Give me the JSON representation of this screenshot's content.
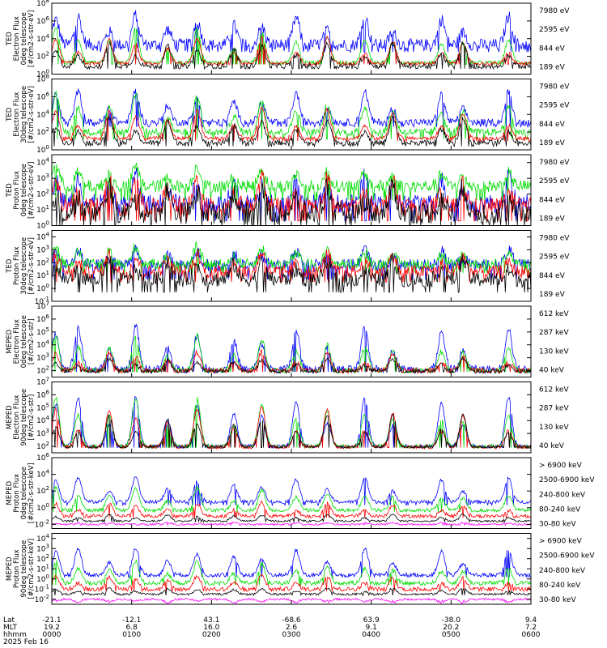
{
  "colors": {
    "blue": "#0000ff",
    "red": "#ff0000",
    "green": "#00dd00",
    "black": "#000000",
    "magenta": "#ff00ff"
  },
  "chart_data": [
    {
      "type": "line",
      "ylabel": [
        "TED",
        "Electron Flux",
        "0deg telescope",
        "[#/cm2-s-str-eV]"
      ],
      "ytick_exp": [
        "8",
        "6",
        "4",
        "2",
        "0"
      ],
      "yexp_top": 8,
      "yexp_bot": 0,
      "legend": [
        {
          "label": "7980 eV",
          "color": "#000000"
        },
        {
          "label": "2595 eV",
          "color": "#ff0000"
        },
        {
          "label": "844 eV",
          "color": "#00dd00"
        },
        {
          "label": "189 eV",
          "color": "#0000ff"
        }
      ],
      "series": [
        {
          "color": "#0000ff",
          "base": 3.3,
          "peak": 3.5,
          "floor": 2.5,
          "noise": 0.7
        },
        {
          "color": "#00dd00",
          "base": 1.3,
          "peak": 4.0,
          "floor": 1.1,
          "noise": 0.2
        },
        {
          "color": "#ff0000",
          "base": 1.2,
          "peak": 3.0,
          "floor": 1.1,
          "noise": 0.2
        },
        {
          "color": "#000000",
          "base": 0.9,
          "peak": 2.6,
          "floor": 0.6,
          "noise": 0.3
        }
      ]
    },
    {
      "type": "line",
      "ylabel": [
        "TED",
        "Electron Flux",
        "30deg telescope",
        "[#/cm2-s-str-eV]"
      ],
      "ytick_exp": [
        "8",
        "6",
        "4",
        "2",
        "0"
      ],
      "yexp_top": 8,
      "yexp_bot": 0,
      "legend": [
        {
          "label": "7980 eV",
          "color": "#000000"
        },
        {
          "label": "2595 eV",
          "color": "#ff0000"
        },
        {
          "label": "844 eV",
          "color": "#00dd00"
        },
        {
          "label": "189 eV",
          "color": "#0000ff"
        }
      ],
      "series": [
        {
          "color": "#0000ff",
          "base": 3.1,
          "peak": 3.8,
          "floor": 2.6,
          "noise": 0.4
        },
        {
          "color": "#00dd00",
          "base": 2.0,
          "peak": 4.4,
          "floor": 1.2,
          "noise": 0.4
        },
        {
          "color": "#ff0000",
          "base": 1.3,
          "peak": 3.4,
          "floor": 1.0,
          "noise": 0.2
        },
        {
          "color": "#000000",
          "base": 0.8,
          "peak": 2.8,
          "floor": 0.4,
          "noise": 0.3
        }
      ]
    },
    {
      "type": "line",
      "ylabel": [
        "TED",
        "Proton Flux",
        "0deg telescope",
        "[#/cm2-s-str-eV]"
      ],
      "ytick_exp": [
        "4",
        "3",
        "2",
        "1",
        "0"
      ],
      "yexp_top": 4.5,
      "yexp_bot": 0,
      "legend": [
        {
          "label": "7980 eV",
          "color": "#000000"
        },
        {
          "label": "2595 eV",
          "color": "#ff0000"
        },
        {
          "label": "844 eV",
          "color": "#00dd00"
        },
        {
          "label": "189 eV",
          "color": "#0000ff"
        }
      ],
      "series": [
        {
          "color": "#0000ff",
          "base": 1.4,
          "peak": 1.8,
          "floor": 0.3,
          "noise": 0.6
        },
        {
          "color": "#00dd00",
          "base": 2.5,
          "peak": 1.3,
          "floor": 1.6,
          "noise": 0.4
        },
        {
          "color": "#ff0000",
          "base": 1.2,
          "peak": 1.8,
          "floor": 0.3,
          "noise": 0.6
        },
        {
          "color": "#000000",
          "base": 0.8,
          "peak": 1.7,
          "floor": 0.0,
          "noise": 0.7
        }
      ]
    },
    {
      "type": "line",
      "ylabel": [
        "TED",
        "Proton Flux",
        "30deg telescope",
        "[#/cm2-s-str-eV]"
      ],
      "ytick_exp": [
        "4",
        "3",
        "2",
        "1",
        "0",
        "-1"
      ],
      "yexp_top": 4.5,
      "yexp_bot": -1,
      "legend": [
        {
          "label": "7980 eV",
          "color": "#000000"
        },
        {
          "label": "2595 eV",
          "color": "#ff0000"
        },
        {
          "label": "844 eV",
          "color": "#00dd00"
        },
        {
          "label": "189 eV",
          "color": "#0000ff"
        }
      ],
      "series": [
        {
          "color": "#0000ff",
          "base": 1.8,
          "peak": 1.3,
          "floor": 0.7,
          "noise": 0.5
        },
        {
          "color": "#00dd00",
          "base": 1.9,
          "peak": 1.4,
          "floor": 1.2,
          "noise": 0.4
        },
        {
          "color": "#ff0000",
          "base": 1.3,
          "peak": 1.5,
          "floor": 0.5,
          "noise": 0.5
        },
        {
          "color": "#000000",
          "base": 0.7,
          "peak": 1.5,
          "floor": -0.3,
          "noise": 0.6
        }
      ]
    },
    {
      "type": "line",
      "ylabel": [
        "MEPED",
        "Electron Flux",
        "0deg telescope",
        "[#/cm2-s-str]"
      ],
      "ytick_exp": [
        "7",
        "6",
        "5",
        "4",
        "3",
        "2"
      ],
      "yexp_top": 7,
      "yexp_bot": 1.5,
      "legend": [
        {
          "label": "612 keV",
          "color": "#000000"
        },
        {
          "label": "287 keV",
          "color": "#ff0000"
        },
        {
          "label": "130 keV",
          "color": "#00dd00"
        },
        {
          "label": "40 keV",
          "color": "#0000ff"
        }
      ],
      "series": [
        {
          "color": "#0000ff",
          "base": 2.1,
          "peak": 3.5,
          "floor": 1.9,
          "noise": 0.3
        },
        {
          "color": "#00dd00",
          "base": 2.0,
          "peak": 2.8,
          "floor": 1.9,
          "noise": 0.2
        },
        {
          "color": "#ff0000",
          "base": 2.0,
          "peak": 1.5,
          "floor": 1.9,
          "noise": 0.2
        },
        {
          "color": "#000000",
          "base": 1.95,
          "peak": 1.0,
          "floor": 1.9,
          "noise": 0.15
        }
      ]
    },
    {
      "type": "line",
      "ylabel": [
        "MEPED",
        "Electron Flux",
        "90deg telescope",
        "[#/cm2-s-str]"
      ],
      "ytick_exp": [
        "7",
        "6",
        "5",
        "4",
        "3",
        "2"
      ],
      "yexp_top": 7,
      "yexp_bot": 1.5,
      "legend": [
        {
          "label": "612 keV",
          "color": "#000000"
        },
        {
          "label": "287 keV",
          "color": "#ff0000"
        },
        {
          "label": "130 keV",
          "color": "#00dd00"
        },
        {
          "label": "40 keV",
          "color": "#0000ff"
        }
      ],
      "series": [
        {
          "color": "#0000ff",
          "base": 2.0,
          "peak": 4.1,
          "floor": 1.9,
          "noise": 0.15
        },
        {
          "color": "#00dd00",
          "base": 2.0,
          "peak": 3.8,
          "floor": 1.9,
          "noise": 0.15
        },
        {
          "color": "#ff0000",
          "base": 1.95,
          "peak": 3.1,
          "floor": 1.9,
          "noise": 0.15
        },
        {
          "color": "#000000",
          "base": 1.95,
          "peak": 2.5,
          "floor": 1.9,
          "noise": 0.1
        }
      ]
    },
    {
      "type": "line",
      "ylabel": [
        "MEPED",
        "Proton Flux",
        "0deg telescope",
        "[#/cm2-s-str-keV]"
      ],
      "ytick_exp": [
        "6",
        "4",
        "2",
        "0",
        "-2"
      ],
      "yexp_top": 6,
      "yexp_bot": -2.5,
      "legend": [
        {
          "label": "> 6900 keV",
          "color": "#ff00ff"
        },
        {
          "label": "2500-6900 keV",
          "color": "#000000"
        },
        {
          "label": "240-800 keV",
          "color": "#ff0000"
        },
        {
          "label": "80-240 keV",
          "color": "#00dd00"
        },
        {
          "label": "30-80 keV",
          "color": "#0000ff"
        }
      ],
      "series": [
        {
          "color": "#0000ff",
          "base": 0.7,
          "peak": 3.2,
          "floor": 0.3,
          "noise": 0.2
        },
        {
          "color": "#00dd00",
          "base": -0.3,
          "peak": 2.8,
          "floor": -0.5,
          "noise": 0.2
        },
        {
          "color": "#ff0000",
          "base": -1.0,
          "peak": 1.6,
          "floor": -1.2,
          "noise": 0.2
        },
        {
          "color": "#000000",
          "base": -1.6,
          "peak": 0.8,
          "floor": -1.7,
          "noise": 0.1
        },
        {
          "color": "#ff00ff",
          "base": -2.0,
          "peak": 0.2,
          "floor": -2.1,
          "noise": 0.1
        }
      ]
    },
    {
      "type": "line",
      "ylabel": [
        "MEPED",
        "Proton Flux",
        "90deg telescope",
        "[#/cm2-s-str-keV]"
      ],
      "ytick_exp": [
        "4",
        "3",
        "2",
        "1",
        "0",
        "-1",
        "-2"
      ],
      "yexp_top": 4.5,
      "yexp_bot": -2.5,
      "legend": [
        {
          "label": "> 6900 keV",
          "color": "#ff00ff"
        },
        {
          "label": "2500-6900 keV",
          "color": "#000000"
        },
        {
          "label": "240-800 keV",
          "color": "#ff0000"
        },
        {
          "label": "80-240 keV",
          "color": "#00dd00"
        },
        {
          "label": "30-80 keV",
          "color": "#0000ff"
        }
      ],
      "series": [
        {
          "color": "#0000ff",
          "base": 0.4,
          "peak": 2.8,
          "floor": 0.2,
          "noise": 0.2
        },
        {
          "color": "#00dd00",
          "base": -0.4,
          "peak": 2.2,
          "floor": -0.6,
          "noise": 0.2
        },
        {
          "color": "#ff0000",
          "base": -1.0,
          "peak": 1.4,
          "floor": -1.2,
          "noise": 0.2
        },
        {
          "color": "#000000",
          "base": -1.5,
          "peak": 0.6,
          "floor": -1.6,
          "noise": 0.1
        },
        {
          "color": "#ff00ff",
          "base": -2.0,
          "peak": -0.4,
          "floor": -2.1,
          "noise": 0.1
        }
      ]
    }
  ],
  "passes_hours": [
    0.05,
    0.33,
    0.72,
    1.05,
    1.45,
    1.82,
    2.28,
    2.63,
    3.06,
    3.45,
    3.92,
    4.27,
    4.88,
    5.15,
    5.72
  ],
  "xaxis": {
    "row_labels": [
      "Lat",
      "MLT",
      "hhmm",
      "2025 Feb 16"
    ],
    "ticks": [
      {
        "hour": 0,
        "lat": "-21.1",
        "mlt": "19.2",
        "hhmm": "0000"
      },
      {
        "hour": 1,
        "lat": "-12.1",
        "mlt": "6.8",
        "hhmm": "0100"
      },
      {
        "hour": 2,
        "lat": "43.1",
        "mlt": "16.0",
        "hhmm": "0200"
      },
      {
        "hour": 3,
        "lat": "-68.6",
        "mlt": "2.6",
        "hhmm": "0300"
      },
      {
        "hour": 4,
        "lat": "63.9",
        "mlt": "9.1",
        "hhmm": "0400"
      },
      {
        "hour": 5,
        "lat": "-38.0",
        "mlt": "20.2",
        "hhmm": "0500"
      },
      {
        "hour": 6,
        "lat": "9.4",
        "mlt": "7.2",
        "hhmm": "0600"
      }
    ],
    "hour_range": [
      0,
      6
    ]
  }
}
